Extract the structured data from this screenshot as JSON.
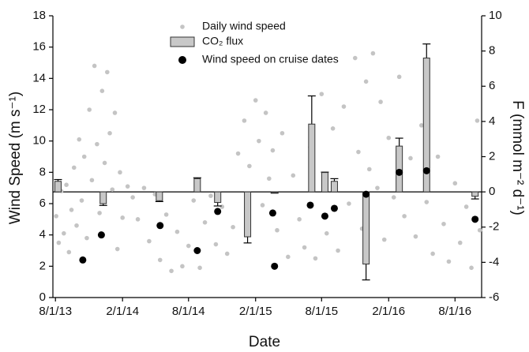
{
  "chart_data": {
    "type": "combo",
    "xlabel": "Date",
    "ylabel": "Wind Speed (m s⁻¹)",
    "y2label": "F (mmol m⁻² d⁻¹)",
    "xlim": [
      "7/25/13",
      "10/13/16"
    ],
    "xticks": [
      "8/1/13",
      "2/1/14",
      "8/1/14",
      "2/1/15",
      "8/1/15",
      "2/1/16",
      "8/1/16"
    ],
    "ylim": [
      0,
      18
    ],
    "yticks": [
      0,
      2,
      4,
      6,
      8,
      10,
      12,
      14,
      16,
      18
    ],
    "y2lim": [
      -6,
      10
    ],
    "y2ticks": [
      -6,
      -4,
      -2,
      0,
      2,
      4,
      6,
      8,
      10
    ],
    "series": [
      {
        "name": "Daily wind speed",
        "type": "scatter",
        "color": "#c4c4c4",
        "x": [
          "8/3/13",
          "8/10/13",
          "8/17/13",
          "8/24/13",
          "8/31/13",
          "9/7/13",
          "9/14/13",
          "9/21/13",
          "9/28/13",
          "10/5/13",
          "10/12/13",
          "10/19/13",
          "10/26/13",
          "11/2/13",
          "11/9/13",
          "11/16/13",
          "11/23/13",
          "11/30/13",
          "12/7/13",
          "12/14/13",
          "12/21/13",
          "12/28/13",
          "1/4/14",
          "1/11/14",
          "1/18/14",
          "1/25/14",
          "2/1/14",
          "2/15/14",
          "3/1/14",
          "3/15/14",
          "4/1/14",
          "4/15/14",
          "5/1/14",
          "5/15/14",
          "6/1/14",
          "6/15/14",
          "7/1/14",
          "7/15/14",
          "8/1/14",
          "8/15/14",
          "9/1/14",
          "9/15/14",
          "10/1/14",
          "10/15/14",
          "11/1/14",
          "11/15/14",
          "12/1/14",
          "12/15/14",
          "1/1/15",
          "1/15/15",
          "2/1/15",
          "2/10/15",
          "2/20/15",
          "3/1/15",
          "3/10/15",
          "3/20/15",
          "4/1/15",
          "4/15/15",
          "5/1/15",
          "5/15/15",
          "6/1/15",
          "6/15/15",
          "7/1/15",
          "7/15/15",
          "8/1/15",
          "8/15/15",
          "9/1/15",
          "9/15/15",
          "10/1/15",
          "10/15/15",
          "11/1/15",
          "11/10/15",
          "11/20/15",
          "12/1/15",
          "12/10/15",
          "12/20/15",
          "1/1/16",
          "1/10/16",
          "1/20/16",
          "2/1/16",
          "2/15/16",
          "3/1/16",
          "3/15/16",
          "4/1/16",
          "4/15/16",
          "5/1/16",
          "5/15/16",
          "6/1/16",
          "6/15/16",
          "7/1/16",
          "7/15/16",
          "8/1/16",
          "8/15/16",
          "9/1/16",
          "9/15/16",
          "10/1/16",
          "10/8/16"
        ],
        "values": [
          5.2,
          3.5,
          6.8,
          4.1,
          7.2,
          2.9,
          5.6,
          8.3,
          4.6,
          10.1,
          6.2,
          9.0,
          3.8,
          12.0,
          7.5,
          14.8,
          9.8,
          5.4,
          13.2,
          8.6,
          14.4,
          10.5,
          6.9,
          11.8,
          3.1,
          8.0,
          5.1,
          7.1,
          6.4,
          5.0,
          7.0,
          3.6,
          6.6,
          2.4,
          5.3,
          1.7,
          4.2,
          2.0,
          3.3,
          6.2,
          1.9,
          4.8,
          6.5,
          3.4,
          5.8,
          2.8,
          4.5,
          9.2,
          11.3,
          8.4,
          12.6,
          10.0,
          5.9,
          11.8,
          7.6,
          9.4,
          4.3,
          10.5,
          2.6,
          7.8,
          5.0,
          3.2,
          9.6,
          2.5,
          13.0,
          4.1,
          10.8,
          3.0,
          12.2,
          6.0,
          15.3,
          9.3,
          4.4,
          13.8,
          8.2,
          15.6,
          7.0,
          12.5,
          3.7,
          10.2,
          6.4,
          14.1,
          5.2,
          8.9,
          3.9,
          11.0,
          6.1,
          2.8,
          9.0,
          4.7,
          2.3,
          7.3,
          3.5,
          5.8,
          1.9,
          11.3,
          4.3
        ]
      },
      {
        "name": "CO₂ flux",
        "type": "bar",
        "axis": "y2",
        "color": "#c8c8c8",
        "x": [
          "8/8/13",
          "12/10/13",
          "5/13/14",
          "8/25/14",
          "10/20/14",
          "1/10/15",
          "3/25/15",
          "7/5/15",
          "8/10/15",
          "9/5/15",
          "12/1/15",
          "3/1/16",
          "5/15/16",
          "9/25/16"
        ],
        "values": [
          0.6,
          -0.67,
          -0.5,
          0.75,
          -0.6,
          -2.55,
          -0.05,
          3.85,
          1.1,
          0.6,
          -4.1,
          2.6,
          7.6,
          -0.25
        ],
        "errors": [
          0.1,
          0.1,
          0.05,
          0.05,
          0.2,
          0.35,
          0.02,
          1.6,
          0.02,
          0.15,
          0.9,
          0.45,
          0.8,
          0.15
        ]
      },
      {
        "name": "Wind speed on cruise dates",
        "type": "scatter",
        "color": "#000000",
        "x": [
          "10/15/13",
          "12/5/13",
          "5/15/14",
          "8/25/14",
          "10/20/14",
          "3/20/15",
          "3/25/15",
          "7/1/15",
          "8/10/15",
          "9/5/15",
          "12/1/15",
          "3/1/16",
          "5/15/16",
          "9/25/16"
        ],
        "values": [
          2.4,
          4.0,
          4.6,
          3.0,
          5.5,
          5.4,
          2.0,
          5.9,
          5.2,
          5.7,
          6.6,
          8.0,
          8.1,
          5.0
        ]
      }
    ]
  }
}
